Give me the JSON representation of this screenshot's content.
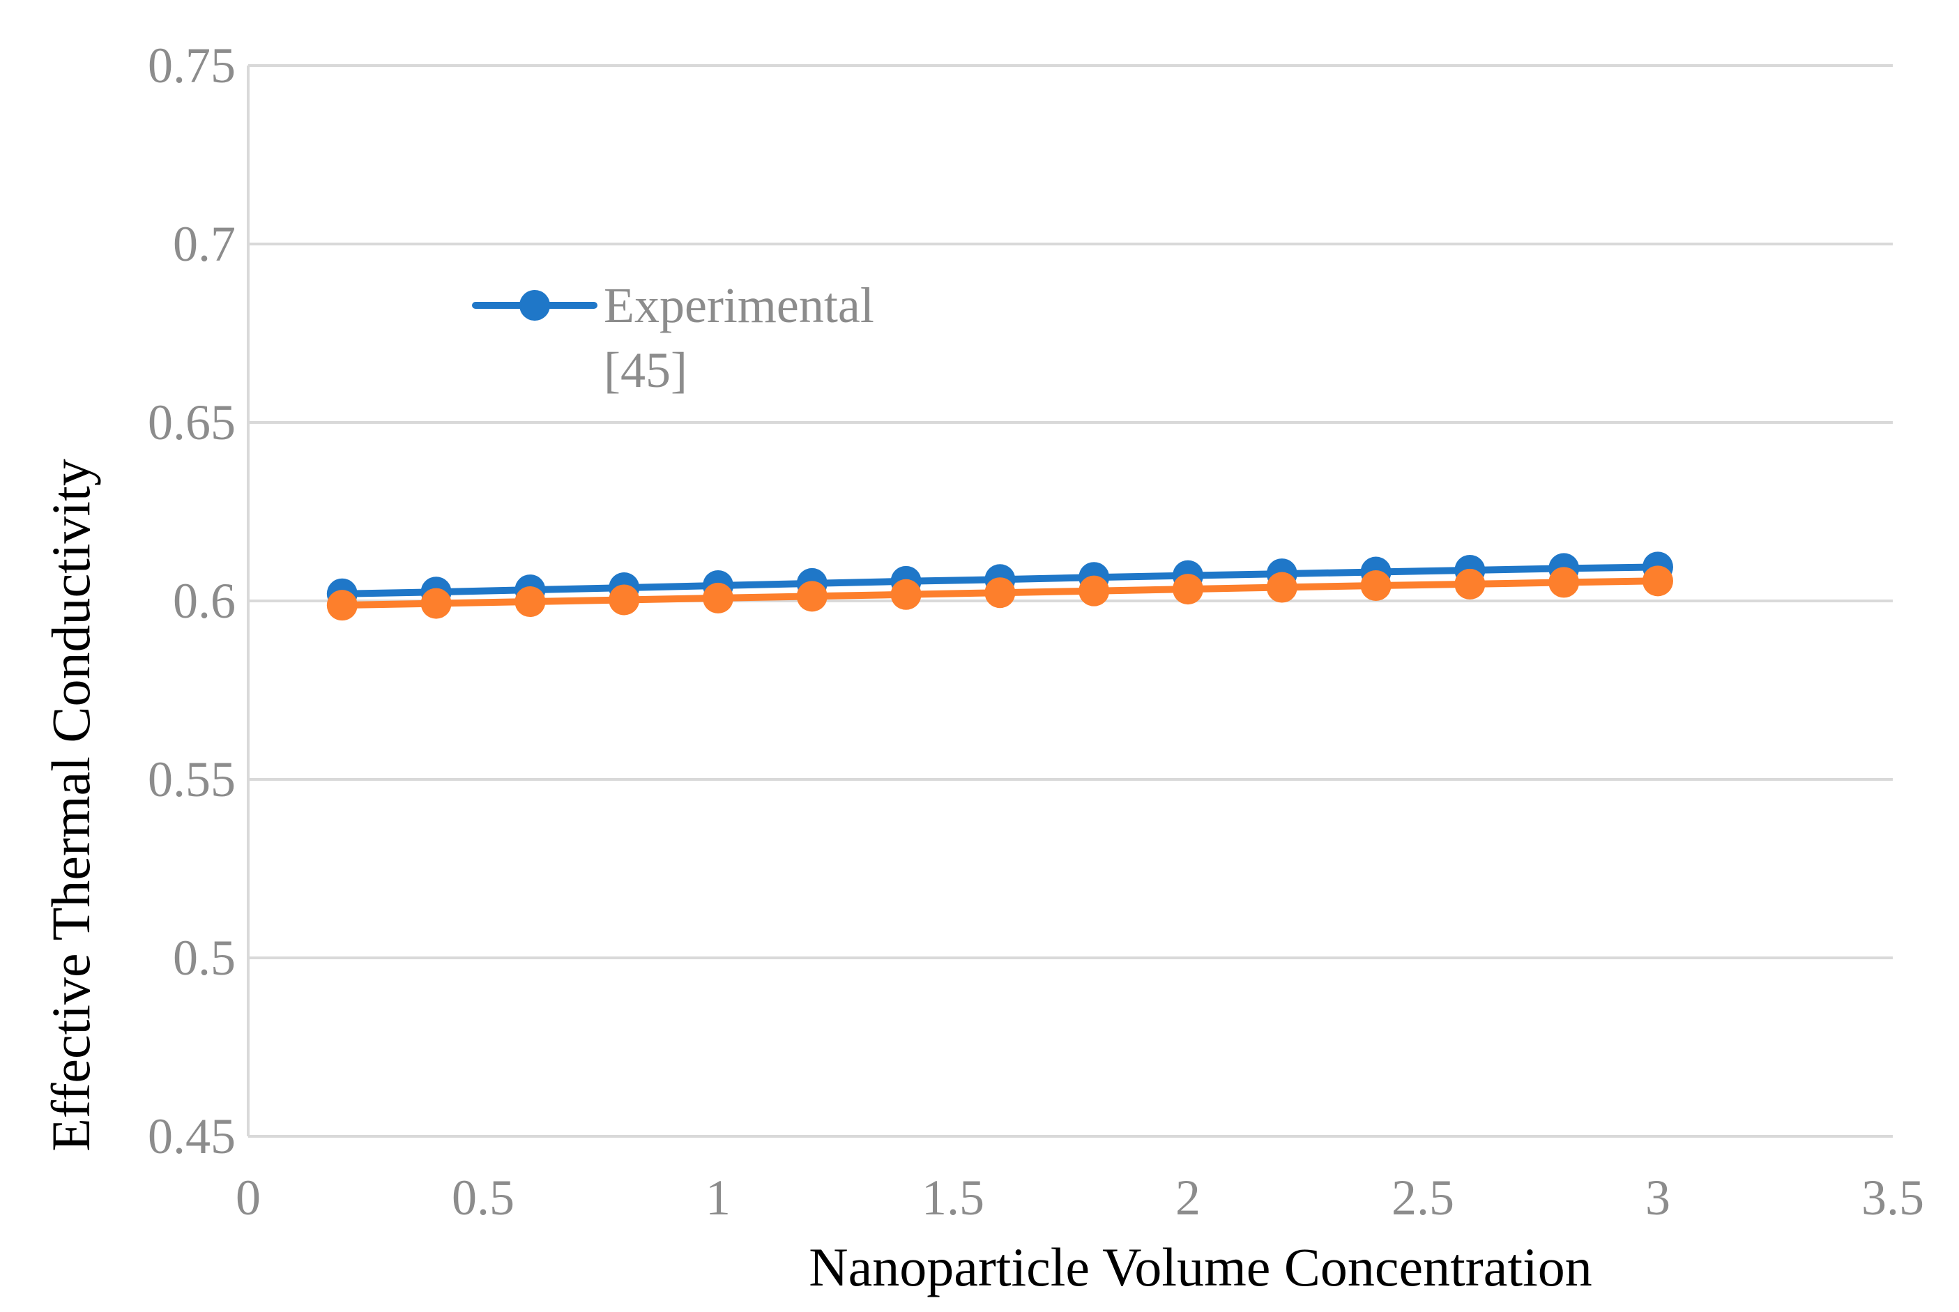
{
  "chart_data": {
    "type": "line",
    "title": "",
    "xlabel": "Nanoparticle Volume Concentration",
    "ylabel": "Effective Thermal Conductivity",
    "xlim": [
      0,
      3.5
    ],
    "ylim": [
      0.45,
      0.75
    ],
    "xticks": [
      "0",
      "0.5",
      "1",
      "1.5",
      "2",
      "2.5",
      "3",
      "3.5"
    ],
    "yticks": [
      "0.45",
      "0.5",
      "0.55",
      "0.6",
      "0.65",
      "0.7",
      "0.75"
    ],
    "grid": true,
    "legend_position": "upper-left",
    "x": [
      0.2,
      0.4,
      0.6,
      0.8,
      1.0,
      1.2,
      1.4,
      1.6,
      1.8,
      2.0,
      2.2,
      2.4,
      2.6,
      2.8,
      3.0
    ],
    "series": [
      {
        "name": "Experimental [45]",
        "legend_lines": [
          "Experimental",
          "[45]"
        ],
        "color": "#1f77c8",
        "show_in_legend": true,
        "values": [
          0.602,
          0.6025,
          0.6031,
          0.6037,
          0.6043,
          0.6049,
          0.6055,
          0.606,
          0.6066,
          0.6071,
          0.6076,
          0.6081,
          0.6086,
          0.6091,
          0.6095
        ]
      },
      {
        "name": "",
        "color": "#fd7f2c",
        "show_in_legend": false,
        "values": [
          0.5988,
          0.5993,
          0.5998,
          0.6003,
          0.6008,
          0.6013,
          0.6018,
          0.6023,
          0.6028,
          0.6033,
          0.6038,
          0.6043,
          0.6047,
          0.6052,
          0.6056
        ]
      }
    ]
  }
}
